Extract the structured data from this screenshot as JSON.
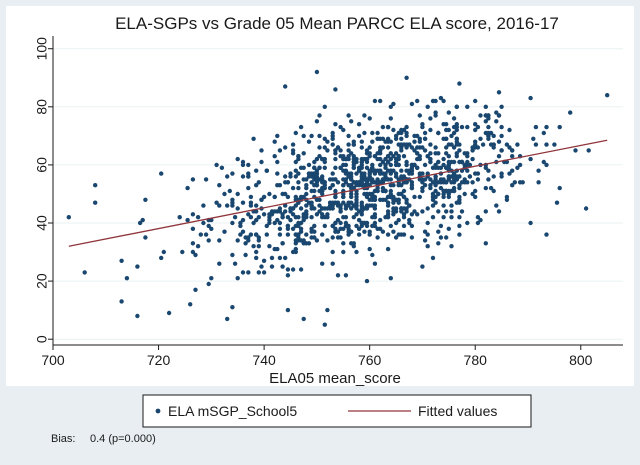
{
  "chart_data": {
    "type": "scatter",
    "title": "ELA-SGPs vs Grade 05 Mean PARCC ELA score, 2016-17",
    "xlabel": "ELA05 mean_score",
    "ylabel": "",
    "xlim": [
      700,
      808
    ],
    "ylim": [
      -2,
      103
    ],
    "xticks": [
      700,
      720,
      740,
      760,
      780,
      800
    ],
    "yticks": [
      0,
      20,
      40,
      60,
      80,
      100
    ],
    "grid": true,
    "legend_position": "bottom",
    "series": [
      {
        "name": "ELA mSGP_School5",
        "kind": "scatter",
        "color": "#1a476f",
        "points_generated": true,
        "n_points": 1200,
        "fit_slope": 0.36,
        "fit_intercept": -221,
        "x_center": 760,
        "x_spread": 15,
        "residual_sd": 11,
        "x_min": 703,
        "x_max": 805,
        "highlight_points": [
          [
            703,
            42
          ],
          [
            706,
            23
          ],
          [
            708,
            53
          ],
          [
            713,
            13
          ],
          [
            714,
            21
          ],
          [
            716,
            8
          ],
          [
            722,
            9
          ],
          [
            733,
            7
          ],
          [
            734,
            11
          ],
          [
            752,
            10
          ],
          [
            750,
            92
          ],
          [
            744,
            87
          ],
          [
            767,
            90
          ],
          [
            777,
            88
          ],
          [
            798,
            78
          ],
          [
            805,
            84
          ],
          [
            799,
            65
          ]
        ]
      },
      {
        "name": "Fitted values",
        "kind": "line",
        "color": "#90353b",
        "x": [
          703,
          805
        ],
        "y": [
          32,
          68.5
        ]
      }
    ]
  },
  "note": {
    "label": "Bias:",
    "value": "0.4 (p=0.000)"
  }
}
